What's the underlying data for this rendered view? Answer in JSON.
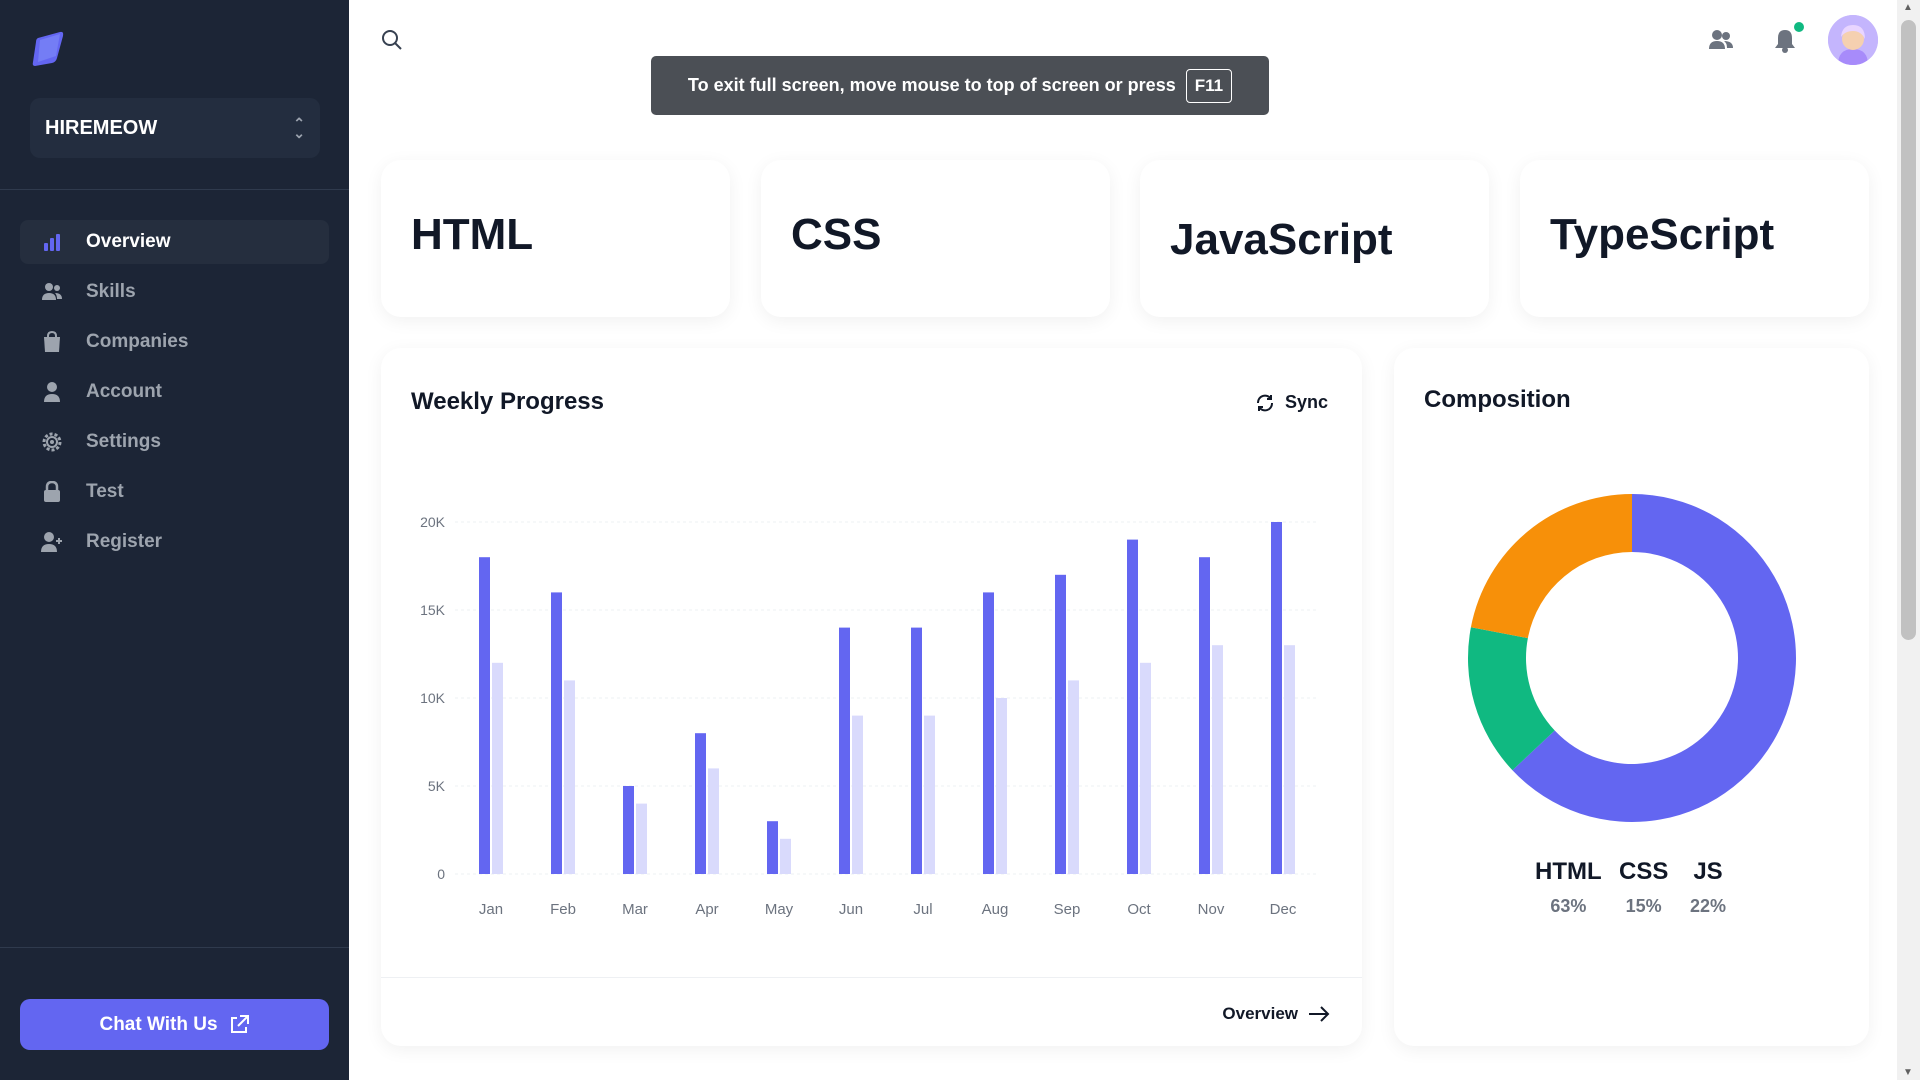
{
  "sidebar": {
    "workspace_name": "HIREMEOW",
    "items": [
      {
        "label": "Overview",
        "icon": "bar-chart-icon",
        "active": true
      },
      {
        "label": "Skills",
        "icon": "users-icon"
      },
      {
        "label": "Companies",
        "icon": "shopping-bag-icon"
      },
      {
        "label": "Account",
        "icon": "user-icon"
      },
      {
        "label": "Settings",
        "icon": "gear-icon"
      },
      {
        "label": "Test",
        "icon": "lock-icon"
      },
      {
        "label": "Register",
        "icon": "user-plus-icon"
      }
    ],
    "chat_label": "Chat With Us"
  },
  "header": {
    "fullscreen_notice": "To exit full screen, move mouse to top of screen or press",
    "fullscreen_key": "F11",
    "notification_dot_color": "#10b981"
  },
  "skills": [
    "HTML",
    "CSS",
    "JavaScript",
    "TypeScript"
  ],
  "weekly": {
    "title": "Weekly Progress",
    "sync_label": "Sync",
    "footer_link": "Overview"
  },
  "composition": {
    "title": "Composition",
    "legend": [
      {
        "label": "HTML",
        "pct": "63%"
      },
      {
        "label": "CSS",
        "pct": "15%"
      },
      {
        "label": "JS",
        "pct": "22%"
      }
    ]
  },
  "colors": {
    "primary": "#6366f1",
    "primary_light": "#d9dafc",
    "green": "#10b981",
    "orange": "#f79009",
    "sidebar": "#1c2536"
  },
  "chart_data": [
    {
      "type": "bar",
      "title": "Weekly Progress",
      "categories": [
        "Jan",
        "Feb",
        "Mar",
        "Apr",
        "May",
        "Jun",
        "Jul",
        "Aug",
        "Sep",
        "Oct",
        "Nov",
        "Dec"
      ],
      "series": [
        {
          "values": [
            18000,
            16000,
            5000,
            8000,
            3000,
            14000,
            14000,
            16000,
            17000,
            19000,
            18000,
            20000
          ],
          "color": "#6366f1"
        },
        {
          "values": [
            12000,
            11000,
            4000,
            6000,
            2000,
            9000,
            9000,
            10000,
            11000,
            12000,
            13000,
            13000
          ],
          "color": "#d9dafc"
        }
      ],
      "yticks": [
        "0",
        "5K",
        "10K",
        "15K",
        "20K"
      ],
      "ylim": [
        0,
        20000
      ],
      "grid": true
    },
    {
      "type": "pie",
      "title": "Composition",
      "labels": [
        "HTML",
        "CSS",
        "JS"
      ],
      "values": [
        63,
        15,
        22
      ],
      "colors": [
        "#6366f1",
        "#10b981",
        "#f79009"
      ]
    }
  ]
}
